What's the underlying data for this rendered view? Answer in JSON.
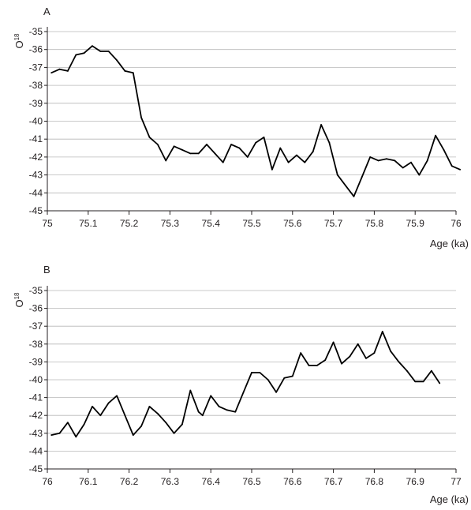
{
  "chart_data": [
    {
      "type": "line",
      "panel_label": "A",
      "ylabel": "O",
      "ylabel_superscript": "18",
      "xlabel": "Age (ka)",
      "xlim": [
        75,
        76
      ],
      "ylim": [
        -45,
        -35
      ],
      "y_inverted": true,
      "grid": "horizontal",
      "x_ticks": [
        "75",
        "75.1",
        "75.2",
        "75.3",
        "75.4",
        "75.5",
        "75.6",
        "75.7",
        "75.8",
        "75.9",
        "76"
      ],
      "y_ticks": [
        "-35",
        "-36",
        "-37",
        "-38",
        "-39",
        "-40",
        "-41",
        "-42",
        "-43",
        "-44",
        "-45"
      ],
      "series": [
        {
          "color": "#000000",
          "points": [
            [
              75.01,
              -37.3
            ],
            [
              75.03,
              -37.1
            ],
            [
              75.05,
              -37.2
            ],
            [
              75.07,
              -36.3
            ],
            [
              75.09,
              -36.2
            ],
            [
              75.11,
              -35.8
            ],
            [
              75.13,
              -36.1
            ],
            [
              75.15,
              -36.1
            ],
            [
              75.17,
              -36.6
            ],
            [
              75.19,
              -37.2
            ],
            [
              75.21,
              -37.3
            ],
            [
              75.23,
              -39.8
            ],
            [
              75.25,
              -40.9
            ],
            [
              75.27,
              -41.3
            ],
            [
              75.29,
              -42.2
            ],
            [
              75.31,
              -41.4
            ],
            [
              75.33,
              -41.6
            ],
            [
              75.35,
              -41.8
            ],
            [
              75.37,
              -41.8
            ],
            [
              75.39,
              -41.3
            ],
            [
              75.41,
              -41.8
            ],
            [
              75.43,
              -42.3
            ],
            [
              75.45,
              -41.3
            ],
            [
              75.47,
              -41.5
            ],
            [
              75.49,
              -42.0
            ],
            [
              75.51,
              -41.2
            ],
            [
              75.53,
              -40.9
            ],
            [
              75.55,
              -42.7
            ],
            [
              75.57,
              -41.5
            ],
            [
              75.59,
              -42.3
            ],
            [
              75.61,
              -41.9
            ],
            [
              75.63,
              -42.3
            ],
            [
              75.65,
              -41.7
            ],
            [
              75.67,
              -40.2
            ],
            [
              75.69,
              -41.2
            ],
            [
              75.71,
              -43.0
            ],
            [
              75.73,
              -43.6
            ],
            [
              75.75,
              -44.2
            ],
            [
              75.77,
              -43.1
            ],
            [
              75.79,
              -42.0
            ],
            [
              75.81,
              -42.2
            ],
            [
              75.83,
              -42.1
            ],
            [
              75.85,
              -42.2
            ],
            [
              75.87,
              -42.6
            ],
            [
              75.89,
              -42.3
            ],
            [
              75.91,
              -43.0
            ],
            [
              75.93,
              -42.2
            ],
            [
              75.95,
              -40.8
            ],
            [
              75.97,
              -41.6
            ],
            [
              75.99,
              -42.5
            ],
            [
              76.01,
              -42.7
            ]
          ]
        }
      ]
    },
    {
      "type": "line",
      "panel_label": "B",
      "ylabel": "O",
      "ylabel_superscript": "18",
      "xlabel": "Age (ka)",
      "xlim": [
        76,
        77
      ],
      "ylim": [
        -45,
        -35
      ],
      "y_inverted": true,
      "grid": "horizontal",
      "x_ticks": [
        "76",
        "76.1",
        "76.2",
        "76.3",
        "76.4",
        "76.5",
        "76.6",
        "76.7",
        "76.8",
        "76.9",
        "77"
      ],
      "y_ticks": [
        "-35",
        "-36",
        "-37",
        "-38",
        "-39",
        "-40",
        "-41",
        "-42",
        "-43",
        "-44",
        "-45"
      ],
      "series": [
        {
          "color": "#000000",
          "points": [
            [
              76.01,
              -43.1
            ],
            [
              76.03,
              -43.0
            ],
            [
              76.05,
              -42.4
            ],
            [
              76.07,
              -43.2
            ],
            [
              76.09,
              -42.5
            ],
            [
              76.11,
              -41.5
            ],
            [
              76.13,
              -42.0
            ],
            [
              76.15,
              -41.3
            ],
            [
              76.17,
              -40.9
            ],
            [
              76.19,
              -42.0
            ],
            [
              76.21,
              -43.1
            ],
            [
              76.23,
              -42.6
            ],
            [
              76.25,
              -41.5
            ],
            [
              76.27,
              -41.9
            ],
            [
              76.29,
              -42.4
            ],
            [
              76.31,
              -43.0
            ],
            [
              76.33,
              -42.5
            ],
            [
              76.35,
              -40.6
            ],
            [
              76.37,
              -41.8
            ],
            [
              76.38,
              -42.0
            ],
            [
              76.4,
              -40.9
            ],
            [
              76.42,
              -41.5
            ],
            [
              76.44,
              -41.7
            ],
            [
              76.46,
              -41.8
            ],
            [
              76.48,
              -40.7
            ],
            [
              76.5,
              -39.6
            ],
            [
              76.52,
              -39.6
            ],
            [
              76.54,
              -40.0
            ],
            [
              76.56,
              -40.7
            ],
            [
              76.58,
              -39.9
            ],
            [
              76.6,
              -39.8
            ],
            [
              76.62,
              -38.5
            ],
            [
              76.64,
              -39.2
            ],
            [
              76.66,
              -39.2
            ],
            [
              76.68,
              -38.9
            ],
            [
              76.7,
              -37.9
            ],
            [
              76.72,
              -39.1
            ],
            [
              76.74,
              -38.7
            ],
            [
              76.76,
              -38.0
            ],
            [
              76.78,
              -38.8
            ],
            [
              76.8,
              -38.5
            ],
            [
              76.82,
              -37.3
            ],
            [
              76.84,
              -38.4
            ],
            [
              76.86,
              -39.0
            ],
            [
              76.88,
              -39.5
            ],
            [
              76.9,
              -40.1
            ],
            [
              76.92,
              -40.1
            ],
            [
              76.94,
              -39.5
            ],
            [
              76.96,
              -40.2
            ]
          ]
        }
      ]
    }
  ]
}
